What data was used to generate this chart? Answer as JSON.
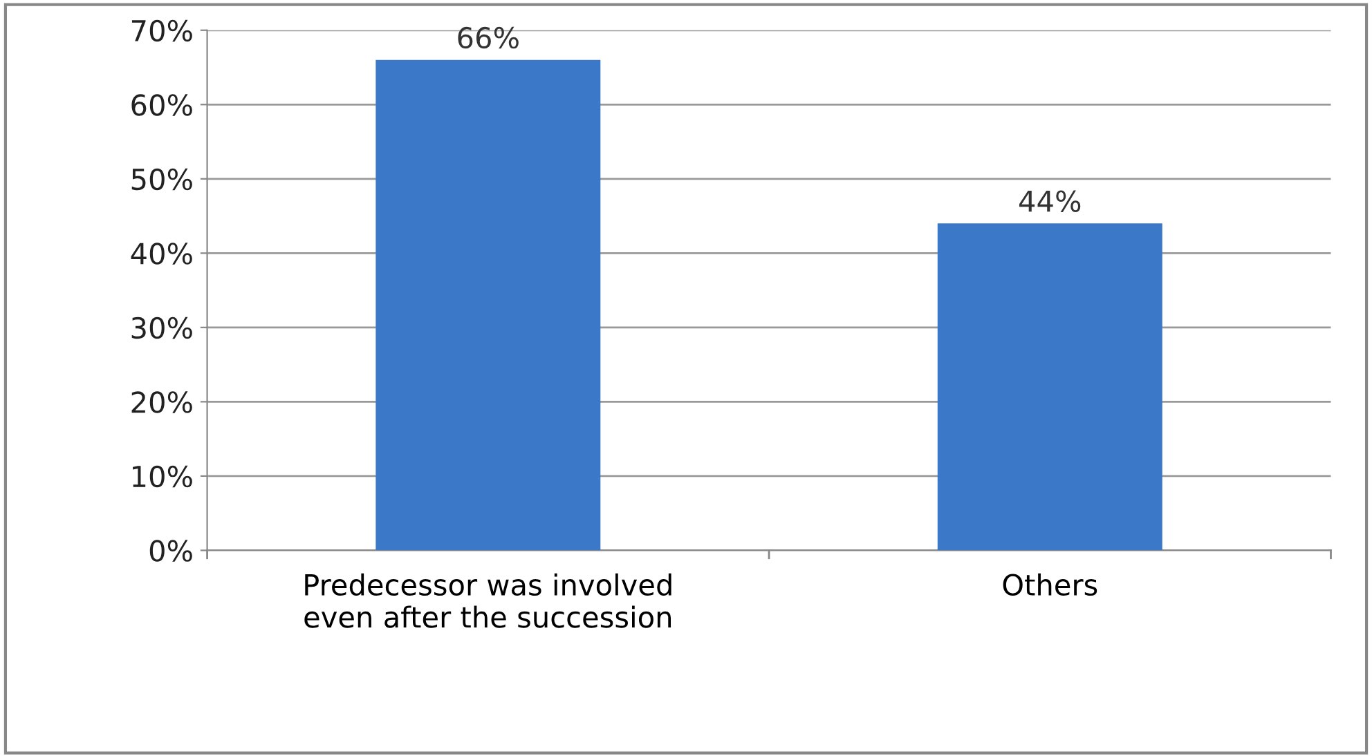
{
  "chart_data": {
    "type": "bar",
    "categories": [
      "Predecessor was involved\neven after the succession",
      "Others"
    ],
    "values": [
      66,
      44
    ],
    "color": "#3b78c8",
    "value_labels": [
      "66%",
      "44%"
    ],
    "ylim": [
      0,
      70
    ],
    "yticks": [
      {
        "value": 0,
        "label": "0%"
      },
      {
        "value": 10,
        "label": "10%"
      },
      {
        "value": 20,
        "label": "20%"
      },
      {
        "value": 30,
        "label": "30%"
      },
      {
        "value": 40,
        "label": "40%"
      },
      {
        "value": 50,
        "label": "50%"
      },
      {
        "value": 60,
        "label": "60%"
      },
      {
        "value": 70,
        "label": "70%"
      }
    ],
    "grid": "y",
    "legend": false
  }
}
